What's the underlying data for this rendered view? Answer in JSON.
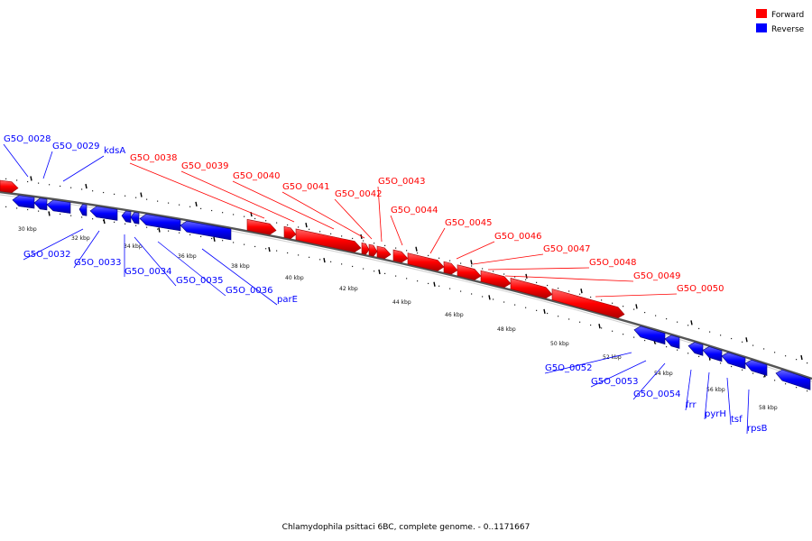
{
  "legend": {
    "forward_label": "Forward",
    "reverse_label": "Reverse",
    "forward_color": "#ff0000",
    "reverse_color": "#0000ff"
  },
  "caption": "Chlamydophila psittaci 6BC, complete genome. - 0..1171667",
  "scale_labels": [
    "30 kbp",
    "32 kbp",
    "34 kbp",
    "36 kbp",
    "38 kbp",
    "40 kbp",
    "42 kbp",
    "44 kbp",
    "46 kbp",
    "48 kbp",
    "50 kbp",
    "52 kbp",
    "54 kbp",
    "56 kbp",
    "58 kbp"
  ],
  "forward_genes": [
    "G5O_0038",
    "G5O_0039",
    "G5O_0040",
    "G5O_0041",
    "G5O_0042",
    "G5O_0043",
    "G5O_0044",
    "G5O_0045",
    "G5O_0046",
    "G5O_0047",
    "G5O_0048",
    "G5O_0049",
    "G5O_0050"
  ],
  "reverse_genes_top": [
    "G5O_0028",
    "G5O_0029",
    "kdsA"
  ],
  "reverse_genes_bottom": [
    "G5O_0032",
    "G5O_0033",
    "G5O_0034",
    "G5O_0035",
    "G5O_0036",
    "parE",
    "G5O_0052",
    "G5O_0053",
    "G5O_0054",
    "frr",
    "pyrH",
    "tsf",
    "rpsB"
  ]
}
